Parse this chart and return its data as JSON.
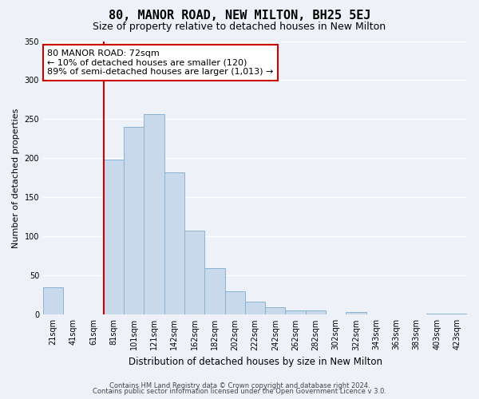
{
  "title": "80, MANOR ROAD, NEW MILTON, BH25 5EJ",
  "subtitle": "Size of property relative to detached houses in New Milton",
  "xlabel": "Distribution of detached houses by size in New Milton",
  "ylabel": "Number of detached properties",
  "bar_labels": [
    "21sqm",
    "41sqm",
    "61sqm",
    "81sqm",
    "101sqm",
    "121sqm",
    "142sqm",
    "162sqm",
    "182sqm",
    "202sqm",
    "222sqm",
    "242sqm",
    "262sqm",
    "282sqm",
    "302sqm",
    "322sqm",
    "343sqm",
    "363sqm",
    "383sqm",
    "403sqm",
    "423sqm"
  ],
  "bar_values": [
    35,
    0,
    0,
    198,
    240,
    257,
    182,
    108,
    60,
    30,
    17,
    10,
    5,
    5,
    0,
    3,
    0,
    0,
    0,
    1,
    1
  ],
  "bar_color": "#c9d9ec",
  "bar_edge_color": "#8ab4d4",
  "ylim": [
    0,
    350
  ],
  "yticks": [
    0,
    50,
    100,
    150,
    200,
    250,
    300,
    350
  ],
  "annotation_title": "80 MANOR ROAD: 72sqm",
  "annotation_line1": "← 10% of detached houses are smaller (120)",
  "annotation_line2": "89% of semi-detached houses are larger (1,013) →",
  "footer1": "Contains HM Land Registry data © Crown copyright and database right 2024.",
  "footer2": "Contains public sector information licensed under the Open Government Licence v 3.0.",
  "bg_color": "#eef2f8",
  "grid_color": "#ffffff",
  "annotation_box_color": "#ffffff",
  "annotation_box_edge": "#cc0000",
  "red_line_color": "#cc0000",
  "title_fontsize": 11,
  "subtitle_fontsize": 9,
  "xlabel_fontsize": 8.5,
  "ylabel_fontsize": 8,
  "tick_fontsize": 7,
  "annotation_fontsize": 8,
  "footer_fontsize": 6
}
